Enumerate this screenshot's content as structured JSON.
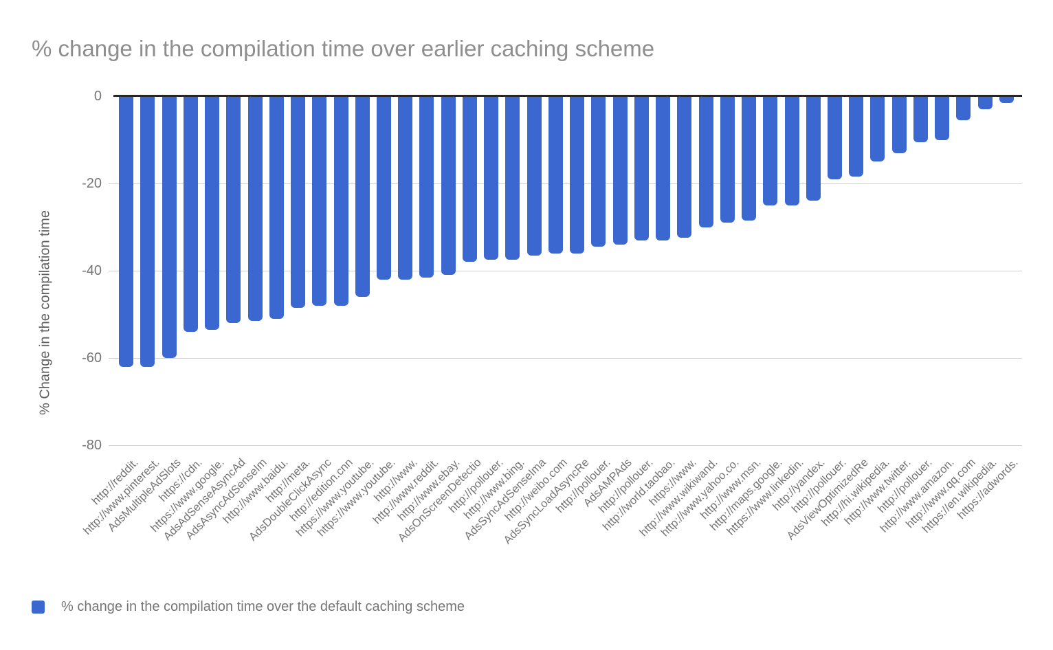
{
  "chart_data": {
    "type": "bar",
    "title": "% change in the compilation time over earlier caching scheme",
    "xlabel": "",
    "ylabel": "% Change in the compilation time",
    "legend": [
      "% change in the compilation time over the default caching scheme"
    ],
    "legend_position": "bottom",
    "ylim": [
      -80,
      0
    ],
    "yticks": [
      0,
      -20,
      -40,
      -60,
      -80
    ],
    "grid": true,
    "x_label_rotation_deg": 45,
    "colors": {
      "bar": "#3A68D0",
      "gridline": "#CFCFCF",
      "zero_axis": "#262626",
      "title_text": "#8E8E8E",
      "axis_text": "#757575"
    },
    "categories": [
      "http://reddit.",
      "http://www.pinterest.",
      "AdsMultipleAdSlots",
      "https://cdn.",
      "https://www.google.",
      "AdsAdSenseAsyncAd",
      "AdsAsyncAdSenseIm",
      "http://www.baidu.",
      "http://meta.",
      "AdsDoubleClickAsync",
      "http://edition.cnn",
      "https://www.youtube.",
      "https://www.youtube.",
      "http://www.",
      "http://www.reddit.",
      "http://www.ebay.",
      "AdsOnScreenDetectio",
      "http://pollouer.",
      "http://www.bing.",
      "AdsSyncAdSenseIma",
      "http://weibo.com",
      "AdsSyncLoadAsyncRe",
      "http://pollouer.",
      "AdsAMPAds",
      "http://pollouer.",
      "http://world.taobao.",
      "https://www.",
      "http://www.wikiwand.",
      "http://www.yahoo.co.",
      "http://www.msn.",
      "http://maps.google.",
      "https://www.linkedin.",
      "http://yandex.",
      "http://pollouer.",
      "AdsViewOptimizedRe",
      "http://hi.wikipedia.",
      "http://www.twitter.",
      "http://pollouer.",
      "http://www.amazon.",
      "http://www.qq.com",
      "https://en.wikipedia.",
      "https://adwords."
    ],
    "values": [
      -62,
      -62,
      -60,
      -54,
      -53.5,
      -52,
      -51.5,
      -51,
      -48.5,
      -48,
      -48,
      -46,
      -42,
      -42,
      -41.5,
      -41,
      -38,
      -37.5,
      -37.5,
      -36.5,
      -36,
      -36,
      -34.5,
      -34,
      -33,
      -33,
      -32.5,
      -30,
      -29,
      -28.5,
      -25,
      -25,
      -24,
      -19,
      -18.5,
      -15,
      -13,
      -10.5,
      -10,
      -5.5,
      -3,
      -1.5
    ]
  }
}
